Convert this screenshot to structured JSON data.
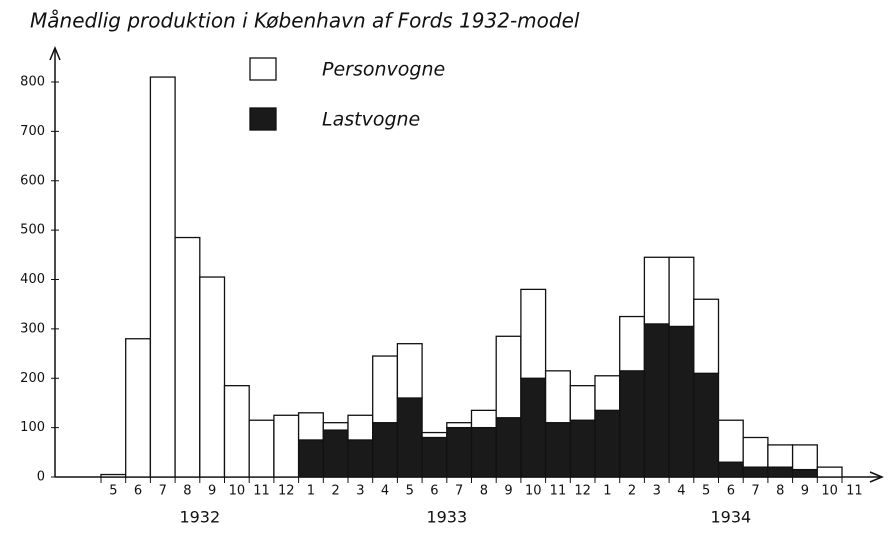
{
  "chart_data": {
    "type": "bar",
    "stacked": true,
    "title": "Månedlig produktion i København af Fords 1932-model",
    "categories": [
      "5",
      "6",
      "7",
      "8",
      "9",
      "10",
      "11",
      "12",
      "1",
      "2",
      "3",
      "4",
      "5",
      "6",
      "7",
      "8",
      "9",
      "10",
      "11",
      "12",
      "1",
      "2",
      "3",
      "4",
      "5",
      "6",
      "7",
      "8",
      "9",
      "10",
      "11"
    ],
    "groups": [
      {
        "name": "1932",
        "size": 8
      },
      {
        "name": "1933",
        "size": 12
      },
      {
        "name": "1934",
        "size": 11
      }
    ],
    "series": [
      {
        "name": "Personvogne",
        "color": "#ffffff",
        "values": [
          5,
          280,
          810,
          485,
          405,
          185,
          115,
          125,
          55,
          15,
          50,
          135,
          110,
          10,
          10,
          35,
          165,
          180,
          105,
          70,
          70,
          110,
          135,
          140,
          150,
          85,
          60,
          45,
          50,
          20,
          0
        ]
      },
      {
        "name": "Lastvogne",
        "color": "#1a1a1a",
        "values": [
          0,
          0,
          0,
          0,
          0,
          0,
          0,
          0,
          75,
          95,
          75,
          110,
          160,
          80,
          100,
          100,
          120,
          200,
          110,
          115,
          135,
          215,
          310,
          305,
          210,
          30,
          20,
          20,
          15,
          0,
          0
        ]
      }
    ],
    "ylim": [
      0,
      850
    ],
    "yticks": [
      0,
      100,
      200,
      300,
      400,
      500,
      600,
      700,
      800
    ]
  }
}
